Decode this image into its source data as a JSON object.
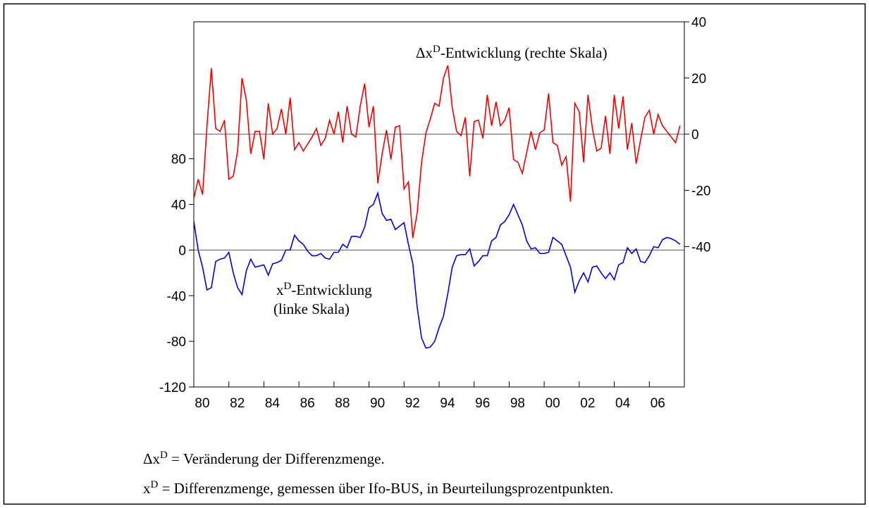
{
  "chart_data": {
    "type": "line",
    "x": [
      1980,
      1980.25,
      1980.5,
      1980.75,
      1981,
      1981.25,
      1981.5,
      1981.75,
      1982,
      1982.25,
      1982.5,
      1982.75,
      1983,
      1983.25,
      1983.5,
      1983.75,
      1984,
      1984.25,
      1984.5,
      1984.75,
      1985,
      1985.25,
      1985.5,
      1985.75,
      1986,
      1986.25,
      1986.5,
      1986.75,
      1987,
      1987.25,
      1987.5,
      1987.75,
      1988,
      1988.25,
      1988.5,
      1988.75,
      1989,
      1989.25,
      1989.5,
      1989.75,
      1990,
      1990.25,
      1990.5,
      1990.75,
      1991,
      1991.25,
      1991.5,
      1991.75,
      1992,
      1992.25,
      1992.5,
      1992.75,
      1993,
      1993.25,
      1993.5,
      1993.75,
      1994,
      1994.25,
      1994.5,
      1994.75,
      1995,
      1995.25,
      1995.5,
      1995.75,
      1996,
      1996.25,
      1996.5,
      1996.75,
      1997,
      1997.25,
      1997.5,
      1997.75,
      1998,
      1998.25,
      1998.5,
      1998.75,
      1999,
      1999.25,
      1999.5,
      1999.75,
      2000,
      2000.25,
      2000.5,
      2000.75,
      2001,
      2001.25,
      2001.5,
      2001.75,
      2002,
      2002.25,
      2002.5,
      2002.75,
      2003,
      2003.25,
      2003.5,
      2003.75,
      2004,
      2004.25,
      2004.5,
      2004.75,
      2005,
      2005.25,
      2005.5,
      2005.75,
      2006,
      2006.25,
      2006.5,
      2006.75,
      2007,
      2007.25,
      2007.5,
      2007.75
    ],
    "series": [
      {
        "color": "#0000dd",
        "axis": "y",
        "values": [
          25,
          0,
          -15,
          -35,
          -33,
          -10,
          -8,
          -7,
          -2,
          -20,
          -33,
          -39,
          -18,
          -8,
          -15,
          -14,
          -13,
          -22,
          -12,
          -11,
          -9,
          0,
          0,
          13,
          8,
          5,
          -1,
          -5,
          -5,
          -3,
          -7,
          -8,
          -2,
          -2,
          5,
          2,
          12,
          12,
          11,
          20,
          37,
          40,
          50,
          32,
          26,
          27,
          18,
          21,
          24,
          5,
          -12,
          -50,
          -77,
          -86,
          -85,
          -80,
          -68,
          -58,
          -38,
          -15,
          -5,
          -4,
          -4,
          1,
          -14,
          -10,
          -5,
          -5,
          8,
          11,
          22,
          25,
          31,
          40,
          31,
          22,
          8,
          1,
          2,
          -3,
          -3,
          -2,
          11,
          8,
          5,
          -5,
          -15,
          -37,
          -27,
          -20,
          -28,
          -15,
          -14,
          -20,
          -25,
          -20,
          -26,
          -13,
          -11,
          2,
          -3,
          1,
          -10,
          -11,
          -5,
          3,
          2,
          9,
          11,
          10,
          8,
          5
        ]
      },
      {
        "color": "#ee0000",
        "axis": "y2",
        "values": [
          -23,
          -16,
          -21.5,
          3,
          23.5,
          2,
          1,
          5,
          -16,
          -15,
          -6,
          20,
          12,
          -7,
          1,
          1,
          -9,
          11,
          0,
          2,
          9,
          0,
          13,
          -5.5,
          -3,
          -6,
          -3.5,
          -1,
          2,
          -4,
          -1.5,
          5,
          0,
          8,
          -3,
          10,
          0,
          -1,
          10,
          18,
          2.5,
          10,
          -17.5,
          -7,
          1.5,
          -9,
          2.5,
          3,
          -19.5,
          -17,
          -37,
          -28,
          -10,
          0.5,
          5.5,
          11,
          10,
          20,
          24.5,
          9.5,
          1,
          -0.5,
          6,
          -15,
          4.5,
          5,
          -1.5,
          14,
          3,
          11.5,
          3,
          5,
          9.5,
          -9,
          -10,
          -14,
          -6.5,
          1,
          -5.5,
          0.5,
          1.5,
          14.5,
          -3,
          -4,
          -11,
          -8,
          -24,
          11,
          8,
          -10,
          14,
          2,
          -6,
          -5,
          6.5,
          -7,
          14,
          2,
          13.5,
          -5.5,
          4,
          -10.5,
          -2,
          6,
          8.5,
          0,
          7,
          3,
          1,
          -1,
          -3,
          3
        ]
      }
    ],
    "xlim": [
      1980,
      2008
    ],
    "xticks": [
      {
        "value": 1980,
        "label": "80"
      },
      {
        "value": 1982,
        "label": "82"
      },
      {
        "value": 1984,
        "label": "84"
      },
      {
        "value": 1986,
        "label": "86"
      },
      {
        "value": 1988,
        "label": "88"
      },
      {
        "value": 1990,
        "label": "90"
      },
      {
        "value": 1992,
        "label": "92"
      },
      {
        "value": 1994,
        "label": "94"
      },
      {
        "value": 1996,
        "label": "96"
      },
      {
        "value": 1998,
        "label": "98"
      },
      {
        "value": 2000,
        "label": "00"
      },
      {
        "value": 2002,
        "label": "02"
      },
      {
        "value": 2004,
        "label": "04"
      },
      {
        "value": 2006,
        "label": "06"
      }
    ],
    "ylim": [
      -120,
      200
    ],
    "yticks": [
      -120,
      -80,
      -40,
      0,
      40,
      80
    ],
    "y2lim": [
      -90,
      40
    ],
    "y2ticks": [
      -40,
      -20,
      0,
      20,
      40
    ],
    "annotations": [
      [
        "Δx",
        "D",
        "-Entwicklung (rechte Skala)"
      ],
      [
        "x",
        "D",
        "-Entwicklung"
      ],
      [
        "(linke Skala)"
      ]
    ],
    "footnotes": [
      [
        "Δx",
        "D",
        " = Veränderung der Differenzmenge."
      ],
      [
        "x",
        "D",
        "   =  Differenzmenge, gemessen über Ifo-BUS, in Beurteilungsprozentpunkten."
      ]
    ]
  }
}
